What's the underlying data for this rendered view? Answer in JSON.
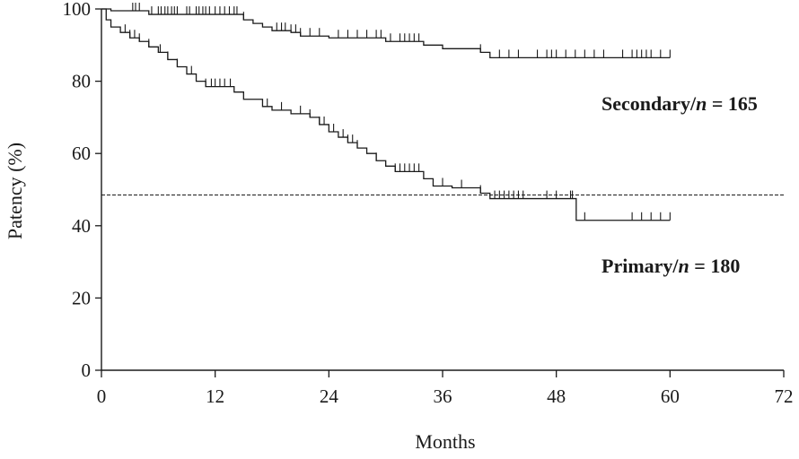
{
  "chart_data": {
    "type": "line",
    "subtype": "kaplan-meier",
    "title": "",
    "xlabel": "Months",
    "ylabel": "Patency (%)",
    "xlim": [
      0,
      72
    ],
    "ylim": [
      0,
      100
    ],
    "xticks": [
      0,
      12,
      24,
      36,
      48,
      60,
      72
    ],
    "yticks": [
      0,
      20,
      40,
      60,
      80,
      100
    ],
    "grid": false,
    "reference_line": {
      "y": 48.5,
      "style": "dashed"
    },
    "colors": {
      "axis": "#1a1a1a",
      "series": "#1a1a1a"
    },
    "series": [
      {
        "name_prefix": "Secondary/",
        "name_n": "n",
        "name_suffix": " = 165",
        "step_points": [
          [
            0,
            100
          ],
          [
            1,
            99.5
          ],
          [
            5,
            98.5
          ],
          [
            15,
            97
          ],
          [
            16,
            96
          ],
          [
            17,
            95
          ],
          [
            18,
            94
          ],
          [
            20,
            93.5
          ],
          [
            21,
            92.5
          ],
          [
            24,
            92
          ],
          [
            30,
            91
          ],
          [
            34,
            90
          ],
          [
            36,
            89
          ],
          [
            40,
            88
          ],
          [
            41,
            86.5
          ],
          [
            60,
            86.5
          ]
        ],
        "censor_times": [
          3.3,
          3.6,
          4,
          5.3,
          6,
          6.3,
          6.7,
          7,
          7.4,
          7.7,
          8,
          9,
          9.3,
          10,
          10.3,
          10.7,
          11,
          11.4,
          12,
          12.5,
          13,
          13.5,
          14,
          14.3,
          15,
          18.5,
          19,
          19.4,
          20,
          20.5,
          21,
          22,
          23,
          25,
          26,
          27,
          28,
          29,
          29.5,
          30.5,
          31.5,
          32,
          32.5,
          33,
          33.5,
          40,
          42,
          43,
          44,
          46,
          47,
          47.5,
          48,
          49,
          50,
          51,
          52,
          53,
          55,
          56,
          56.5,
          57,
          57.5,
          58,
          59,
          60
        ]
      },
      {
        "name_prefix": "Primary/",
        "name_n": "n",
        "name_suffix": " = 180",
        "step_points": [
          [
            0,
            100
          ],
          [
            0.5,
            97
          ],
          [
            1,
            95
          ],
          [
            2,
            93.5
          ],
          [
            3,
            92
          ],
          [
            4,
            91
          ],
          [
            5,
            89.5
          ],
          [
            6,
            88
          ],
          [
            7,
            86
          ],
          [
            8,
            84
          ],
          [
            9,
            82
          ],
          [
            10,
            80
          ],
          [
            11,
            78.5
          ],
          [
            14,
            77
          ],
          [
            15,
            75
          ],
          [
            17,
            73
          ],
          [
            18,
            72
          ],
          [
            20,
            71
          ],
          [
            22,
            70
          ],
          [
            23,
            68
          ],
          [
            24,
            66
          ],
          [
            25,
            64.5
          ],
          [
            26,
            63
          ],
          [
            27,
            61.5
          ],
          [
            28,
            60
          ],
          [
            29,
            58
          ],
          [
            30,
            56.5
          ],
          [
            31,
            55
          ],
          [
            34,
            53
          ],
          [
            35,
            51
          ],
          [
            37,
            50.5
          ],
          [
            40,
            49
          ],
          [
            41,
            47.5
          ],
          [
            50,
            47.5
          ],
          [
            50.1,
            41.5
          ],
          [
            60,
            41.5
          ]
        ],
        "censor_times": [
          2.5,
          3,
          3.5,
          4,
          5,
          6.2,
          7,
          8,
          9.5,
          11,
          11.6,
          12,
          12.5,
          13,
          13.6,
          17.5,
          19,
          21,
          22,
          23,
          23.5,
          24.5,
          25.5,
          26,
          26.5,
          27,
          29,
          31,
          31.5,
          32,
          32.5,
          33,
          33.5,
          36,
          38,
          40,
          41.5,
          42,
          42.5,
          43,
          43.5,
          44,
          44.5,
          47,
          48,
          49.5,
          49.7,
          51,
          56,
          57,
          58,
          59,
          60
        ]
      }
    ]
  }
}
